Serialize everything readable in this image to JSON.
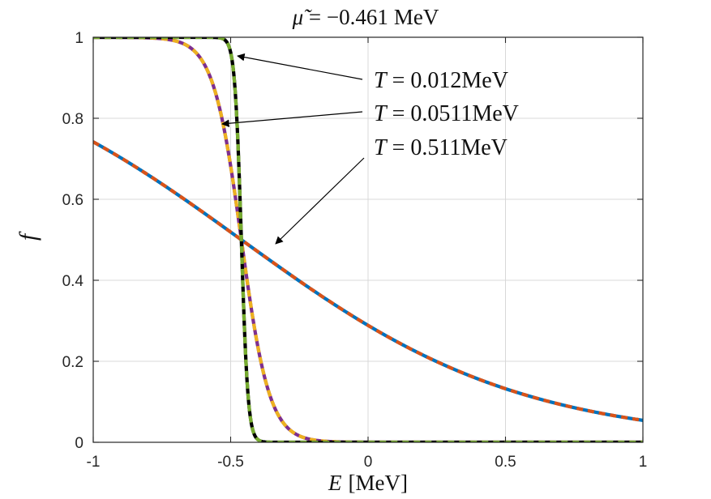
{
  "chart_data": {
    "type": "line",
    "title": "μ̃ = −0.461 MeV",
    "title_parts": {
      "symbol": "μ̃",
      "value": " = −0.461",
      "unit": "MeV"
    },
    "xlabel": "E [MeV]",
    "xlabel_parts": {
      "symbol": "E",
      "unit": "[MeV]"
    },
    "ylabel": "f",
    "xlim": [
      -1,
      1
    ],
    "ylim": [
      0,
      1
    ],
    "grid": true,
    "mu": -0.461,
    "x_ticks": [
      -1,
      -0.5,
      0,
      0.5,
      1
    ],
    "x_tick_labels": [
      "-1",
      "-0.5",
      "0",
      "0.5",
      "1"
    ],
    "y_ticks": [
      0,
      0.2,
      0.4,
      0.6,
      0.8,
      1
    ],
    "y_tick_labels": [
      "0",
      "0.2",
      "0.4",
      "0.6",
      "0.8",
      "1"
    ],
    "series": [
      {
        "name": "T = 0.511MeV",
        "temperature": 0.511,
        "solid_color": "#0072BD",
        "dash_color": "#D95319",
        "sample_x": [
          -1,
          -0.75,
          -0.5,
          -0.25,
          0,
          0.25,
          0.5,
          0.75,
          1
        ],
        "sample_y": [
          0.743,
          0.617,
          0.519,
          0.397,
          0.289,
          0.197,
          0.133,
          0.087,
          0.054
        ]
      },
      {
        "name": "T = 0.0511MeV",
        "temperature": 0.0511,
        "solid_color": "#7E2F8E",
        "dash_color": "#EDB120",
        "sample_x": [
          -1,
          -0.7,
          -0.6,
          -0.5,
          -0.461,
          -0.4,
          -0.3,
          -0.2,
          0
        ],
        "sample_y": [
          1.0,
          0.991,
          0.936,
          0.675,
          0.5,
          0.231,
          0.043,
          0.006,
          0.0
        ]
      },
      {
        "name": "T = 0.012MeV",
        "temperature": 0.012,
        "solid_color": "#000000",
        "dash_color": "#77AC30",
        "sample_x": [
          -1,
          -0.55,
          -0.5,
          -0.47,
          -0.461,
          -0.45,
          -0.42,
          -0.37,
          0
        ],
        "sample_y": [
          1.0,
          0.999,
          0.961,
          0.681,
          0.5,
          0.285,
          0.033,
          0.0005,
          0.0
        ]
      }
    ],
    "annotations": [
      {
        "label": "T = 0.012MeV",
        "symbol": "T",
        "value": " = 0.012MeV",
        "points_to_series": "T = 0.012MeV"
      },
      {
        "label": "T = 0.0511MeV",
        "symbol": "T",
        "value": " = 0.0511MeV",
        "points_to_series": "T = 0.0511MeV"
      },
      {
        "label": "T = 0.511MeV",
        "symbol": "T",
        "value": " = 0.511MeV",
        "points_to_series": "T = 0.511MeV"
      }
    ]
  }
}
